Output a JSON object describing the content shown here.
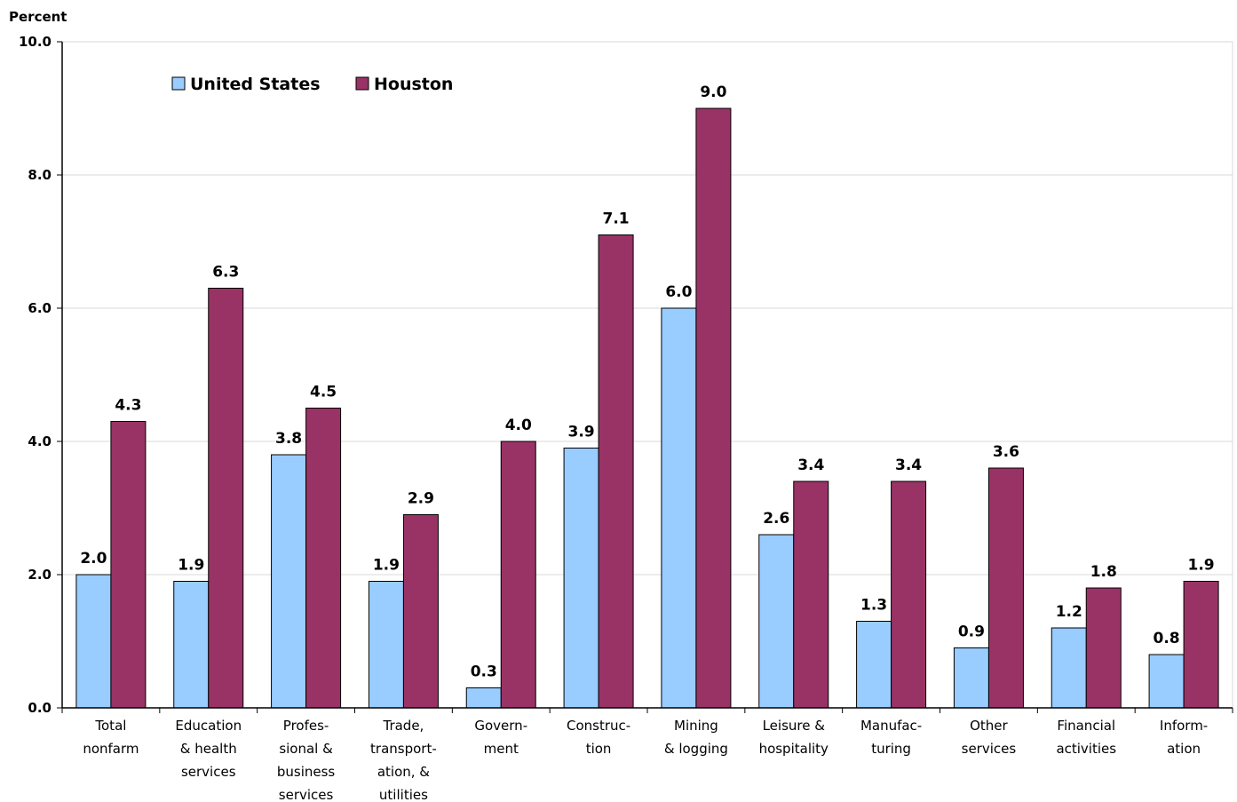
{
  "chart_data": {
    "type": "bar",
    "ylabel": "Percent",
    "ylim": [
      0,
      10
    ],
    "yticks": [
      "0.0",
      "2.0",
      "4.0",
      "6.0",
      "8.0",
      "10.0"
    ],
    "grid": true,
    "legend_position": "top-left",
    "categories": [
      [
        "Total",
        "nonfarm"
      ],
      [
        "Education",
        "& health",
        "services"
      ],
      [
        "Profes-",
        "sional &",
        "business",
        "services"
      ],
      [
        "Trade,",
        "transport-",
        "ation, &",
        "utilities"
      ],
      [
        "Govern-",
        "ment"
      ],
      [
        "Construc-",
        "tion"
      ],
      [
        "Mining",
        "& logging"
      ],
      [
        "Leisure &",
        "hospitality"
      ],
      [
        "Manufac-",
        "turing"
      ],
      [
        "Other",
        "services"
      ],
      [
        "Financial",
        "activities"
      ],
      [
        "Inform-",
        "ation"
      ]
    ],
    "series": [
      {
        "name": "United States",
        "color": "#99ccff",
        "values": [
          2.0,
          1.9,
          3.8,
          1.9,
          0.3,
          3.9,
          6.0,
          2.6,
          1.3,
          0.9,
          1.2,
          0.8
        ],
        "labels": [
          "2.0",
          "1.9",
          "3.8",
          "1.9",
          "0.3",
          "3.9",
          "6.0",
          "2.6",
          "1.3",
          "0.9",
          "1.2",
          "0.8"
        ]
      },
      {
        "name": "Houston",
        "color": "#993366",
        "values": [
          4.3,
          6.3,
          4.5,
          2.9,
          4.0,
          7.1,
          9.0,
          3.4,
          3.4,
          3.6,
          1.8,
          1.9
        ],
        "labels": [
          "4.3",
          "6.3",
          "4.5",
          "2.9",
          "4.0",
          "7.1",
          "9.0",
          "3.4",
          "3.4",
          "3.6",
          "1.8",
          "1.9"
        ]
      }
    ]
  }
}
